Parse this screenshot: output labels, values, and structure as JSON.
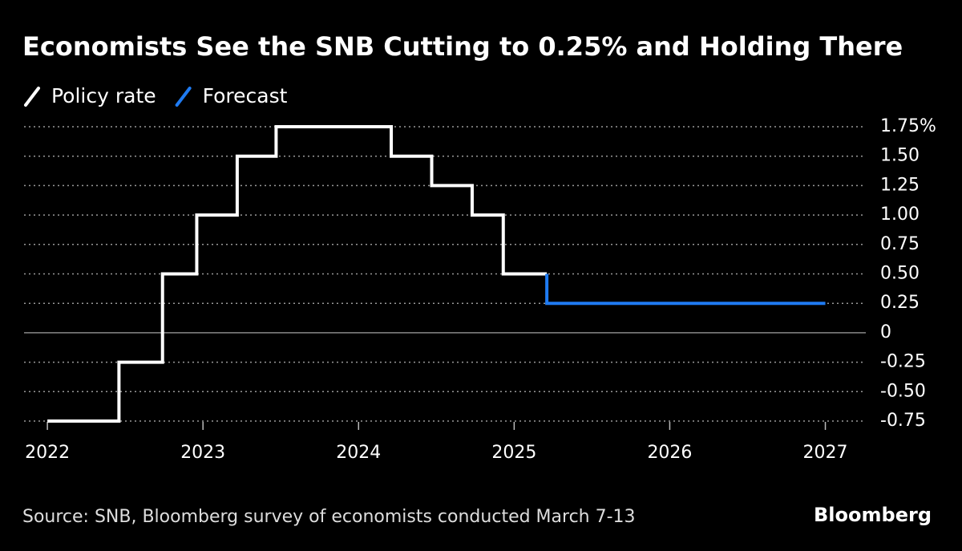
{
  "chart_data": {
    "type": "line",
    "step": "post",
    "title": "Economists See the SNB Cutting to 0.25% and Holding There",
    "source": "Source: SNB, Bloomberg survey of economists conducted March 7-13",
    "brand": "Bloomberg",
    "series": [
      {
        "name": "Policy rate",
        "color": "#ffffff",
        "x": [
          2022.0,
          2022.46,
          2022.74,
          2022.96,
          2023.22,
          2023.47,
          2024.21,
          2024.47,
          2024.73,
          2024.93,
          2025.21
        ],
        "values": [
          -0.75,
          -0.25,
          0.5,
          1.0,
          1.5,
          1.75,
          1.5,
          1.25,
          1.0,
          0.5,
          0.5
        ]
      },
      {
        "name": "Forecast",
        "color": "#1f7bf2",
        "x": [
          2025.21,
          2025.21,
          2027.0
        ],
        "values": [
          0.5,
          0.25,
          0.25
        ]
      }
    ],
    "xlim": [
      2021.85,
      2027.26
    ],
    "xticks": [
      2022,
      2023,
      2024,
      2025,
      2026,
      2027
    ],
    "ylim": [
      -0.75,
      1.75
    ],
    "yticks": [
      {
        "value": 1.75,
        "label": "1.75%"
      },
      {
        "value": 1.5,
        "label": "1.50"
      },
      1.25,
      {
        "value": 1.0,
        "label": "1.00"
      },
      0.75,
      {
        "value": 0.5,
        "label": "0.50"
      },
      0.25,
      0,
      -0.25,
      {
        "value": -0.5,
        "label": "-0.50"
      },
      -0.75
    ],
    "grid": true
  }
}
